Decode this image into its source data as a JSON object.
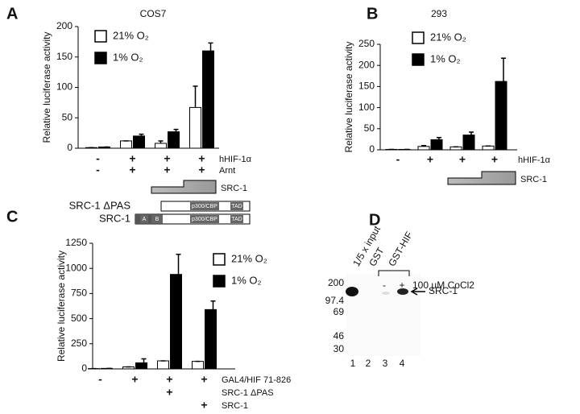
{
  "chart_data": [
    {
      "type": "bar",
      "panel": "A",
      "title": "COS7",
      "ylabel": "Relative luciferase activity",
      "ylim": [
        0,
        200
      ],
      "yticks": [
        0,
        50,
        100,
        150,
        200
      ],
      "series": [
        {
          "name": "21% O₂",
          "color": "#ffffff",
          "values": [
            1,
            12,
            8,
            67
          ],
          "errors": [
            0,
            0,
            4,
            35
          ]
        },
        {
          "name": "1% O₂",
          "color": "#000000",
          "values": [
            2,
            20,
            27,
            160
          ],
          "errors": [
            0,
            3,
            4,
            13
          ]
        }
      ],
      "conditions": [
        {
          "label": "hHIF-1α",
          "marks": [
            "-",
            "+",
            "+",
            "+"
          ]
        },
        {
          "label": "Arnt",
          "marks": [
            "-",
            "+",
            "+",
            "+"
          ]
        },
        {
          "label": "SRC-1"
        }
      ]
    },
    {
      "type": "bar",
      "panel": "B",
      "title": "293",
      "ylabel": "Relative luciferase activity",
      "ylim": [
        0,
        250
      ],
      "yticks": [
        0,
        50,
        100,
        150,
        200,
        250
      ],
      "series": [
        {
          "name": "21% O₂",
          "color": "#ffffff",
          "values": [
            1,
            8,
            7,
            9
          ],
          "errors": [
            0,
            2,
            0,
            0
          ]
        },
        {
          "name": "1% O₂",
          "color": "#000000",
          "values": [
            1,
            24,
            35,
            162
          ],
          "errors": [
            0,
            5,
            7,
            55
          ]
        }
      ],
      "conditions": [
        {
          "label": "hHIF-1α",
          "marks": [
            "-",
            "+",
            "+",
            "+"
          ]
        },
        {
          "label": "SRC-1"
        }
      ]
    },
    {
      "type": "bar",
      "panel": "C",
      "ylabel": "Relative luciferase activity",
      "ylim": [
        0,
        1250
      ],
      "yticks": [
        0,
        250,
        500,
        750,
        1000,
        1250
      ],
      "constructs": [
        {
          "name": "SRC-1 ΔPAS",
          "domains": [
            "p300/CBP",
            "TAD"
          ]
        },
        {
          "name": "SRC-1",
          "domains": [
            "A",
            "B",
            "p300/CBP",
            "TAD"
          ]
        }
      ],
      "series": [
        {
          "name": "21% O₂",
          "color": "#ffffff",
          "values": [
            3,
            20,
            80,
            75
          ],
          "errors": [
            0,
            0,
            0,
            0
          ]
        },
        {
          "name": "1% O₂",
          "color": "#000000",
          "values": [
            5,
            60,
            940,
            590
          ],
          "errors": [
            0,
            40,
            200,
            85
          ]
        }
      ],
      "conditions": [
        {
          "label": "GAL4/HIF 71-826",
          "marks": [
            "-",
            "+",
            "+",
            "+"
          ]
        },
        {
          "label": "SRC-1 ΔPAS",
          "marks": [
            null,
            null,
            "+",
            null
          ]
        },
        {
          "label": "SRC-1",
          "marks": [
            null,
            null,
            null,
            "+"
          ]
        }
      ]
    }
  ],
  "gel_panel": {
    "panel": "D",
    "lane_headers": [
      "1/5 x input",
      "GST",
      "GST-HIF"
    ],
    "treatment": {
      "marks": [
        "-",
        "+"
      ],
      "label": "100 µM CoCl2"
    },
    "markers": [
      "200",
      "97.4",
      "69",
      "46",
      "30"
    ],
    "band_label": "SRC-1",
    "lanes": [
      "1",
      "2",
      "3",
      "4"
    ]
  }
}
